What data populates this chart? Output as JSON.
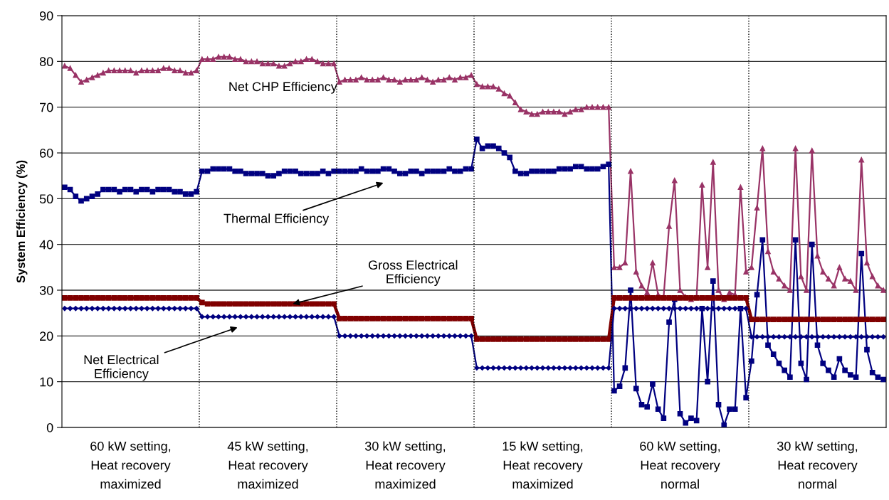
{
  "chart_data": {
    "type": "line",
    "ylabel": "System Efficiency (%)",
    "categories": [
      null,
      null,
      null,
      null,
      null,
      null,
      null,
      null,
      null,
      null,
      null,
      null,
      "60 kW setting,\nHeat recovery\nmaximized",
      null,
      null,
      null,
      null,
      null,
      null,
      null,
      null,
      null,
      null,
      null,
      null,
      null,
      null,
      null,
      null,
      null,
      null,
      null,
      null,
      null,
      null,
      null,
      null,
      "45 kW setting,\nHeat recovery\nmaximized",
      null,
      null,
      null,
      null,
      null,
      null,
      null,
      null,
      null,
      null,
      null,
      null,
      null,
      null,
      null,
      null,
      null,
      null,
      null,
      null,
      null,
      null,
      null,
      null,
      "30 kW setting,\nHeat recovery\nmaximized",
      null,
      null,
      null,
      null,
      null,
      null,
      null,
      null,
      null,
      null,
      null,
      null,
      null,
      null,
      null,
      null,
      null,
      null,
      null,
      null,
      null,
      null,
      null,
      null,
      "15 kW setting,\nHeat recovery\nmaximized",
      null,
      null,
      null,
      null,
      null,
      null,
      null,
      null,
      null,
      null,
      null,
      null,
      null,
      null,
      null,
      null,
      null,
      null,
      null,
      null,
      null,
      null,
      null,
      null,
      "60 kW setting,\nHeat recovery\nnormal",
      null,
      null,
      null,
      null,
      null,
      null,
      null,
      null,
      null,
      null,
      null,
      null,
      null,
      null,
      null,
      null,
      null,
      null,
      null,
      null,
      null,
      null,
      null,
      null,
      "30 kW setting,\nHeat recovery\nnormal",
      null,
      null,
      null,
      null,
      null,
      null,
      null,
      null,
      null,
      null,
      null,
      null
    ],
    "ylim": [
      0,
      90
    ],
    "yticks": [
      0,
      10,
      20,
      30,
      40,
      50,
      60,
      70,
      80,
      90
    ],
    "grid": "y",
    "line_style": "solid",
    "series": [
      {
        "color": "#993366",
        "marker": "triangle",
        "values": [
          79,
          78.5,
          77,
          75.5,
          76,
          76.5,
          77,
          77.5,
          78,
          78,
          78,
          78,
          78,
          77.5,
          78,
          78,
          78,
          78,
          78.5,
          78.5,
          78,
          78,
          77.5,
          77.5,
          78,
          80.5,
          80.5,
          80.5,
          81,
          81,
          81,
          80.5,
          80.5,
          80,
          80,
          80,
          79.5,
          79.5,
          79.5,
          79,
          79,
          79.5,
          80,
          80,
          80.5,
          80.5,
          80,
          79.5,
          79.5,
          79.5,
          75.5,
          76,
          76,
          76,
          76.5,
          76,
          76,
          76,
          76.5,
          76,
          76,
          75.5,
          76,
          76,
          76,
          76.5,
          76,
          75.5,
          76,
          76,
          76.5,
          76,
          76.5,
          76.5,
          77,
          75,
          74.5,
          74.5,
          74.5,
          74,
          73,
          72.5,
          71,
          69.5,
          69,
          68.5,
          68.5,
          69,
          69,
          69,
          69,
          68.5,
          69,
          69.5,
          69.5,
          70,
          70,
          70,
          70,
          70,
          35,
          35,
          36,
          56,
          34,
          31,
          29.5,
          36,
          29,
          28.5,
          44,
          54,
          30,
          28.5,
          28,
          28.5,
          53,
          35,
          58,
          30,
          28,
          29.5,
          29,
          52.5,
          34,
          35,
          48,
          61,
          38.5,
          34,
          32.5,
          31,
          30,
          61,
          33,
          30,
          60.5,
          37.5,
          34,
          32.5,
          31,
          35,
          32.5,
          32,
          30,
          58.5,
          36,
          33,
          31,
          30
        ]
      },
      {
        "color": "#000080",
        "marker": "square",
        "values": [
          52.5,
          52,
          50.5,
          49.5,
          50,
          50.5,
          51,
          52,
          52,
          52,
          51.5,
          52,
          52,
          51.5,
          52,
          52,
          51.5,
          52,
          52,
          52,
          51.5,
          51.5,
          51,
          51,
          51.5,
          56,
          56,
          56.5,
          56.5,
          56.5,
          56.5,
          56,
          56,
          55.5,
          55.5,
          55.5,
          55.5,
          55,
          55,
          55.5,
          56,
          56,
          56,
          55.5,
          55.5,
          55.5,
          55.5,
          56,
          55.5,
          56,
          56,
          56,
          56,
          56,
          56.5,
          56,
          56,
          56,
          56.5,
          56.5,
          56,
          55.5,
          55.5,
          56,
          56,
          55.5,
          56,
          56,
          56,
          56,
          56.5,
          56,
          56,
          56.5,
          56.5,
          63,
          61,
          61.5,
          61.5,
          61,
          60,
          59,
          56,
          55.5,
          55.5,
          56,
          56,
          56,
          56,
          56,
          56.5,
          56.5,
          56.5,
          57,
          57,
          56.5,
          56.5,
          56.5,
          57,
          57.5,
          8,
          9,
          13,
          30,
          8.5,
          5,
          4.5,
          9.5,
          4,
          2,
          23,
          28,
          3,
          1,
          2,
          1.5,
          26,
          10,
          32,
          5,
          0.5,
          4,
          4,
          26,
          6.5,
          14.5,
          29,
          41,
          18,
          16,
          14,
          12.5,
          11,
          41,
          14,
          10.5,
          40,
          18,
          14,
          12.5,
          11,
          15,
          12.5,
          11.5,
          11,
          38,
          17,
          12,
          11,
          10.5
        ]
      },
      {
        "color": "#800000",
        "marker": "square",
        "values": [
          28.3,
          28.3,
          28.3,
          28.3,
          28.3,
          28.3,
          28.3,
          28.3,
          28.3,
          28.3,
          28.3,
          28.3,
          28.3,
          28.3,
          28.3,
          28.3,
          28.3,
          28.3,
          28.3,
          28.3,
          28.3,
          28.3,
          28.3,
          28.3,
          28.3,
          27.3,
          27,
          27,
          27,
          27,
          27,
          27,
          27,
          27,
          27,
          27,
          27,
          27,
          27,
          27,
          27,
          27,
          27,
          27,
          27,
          27,
          27,
          27,
          27,
          27,
          23.8,
          23.8,
          23.8,
          23.8,
          23.8,
          23.8,
          23.8,
          23.8,
          23.8,
          23.8,
          23.8,
          23.8,
          23.8,
          23.8,
          23.8,
          23.8,
          23.8,
          23.8,
          23.8,
          23.8,
          23.8,
          23.8,
          23.8,
          23.8,
          23.8,
          19.3,
          19.3,
          19.3,
          19.3,
          19.3,
          19.3,
          19.3,
          19.3,
          19.3,
          19.3,
          19.3,
          19.3,
          19.3,
          19.3,
          19.3,
          19.3,
          19.3,
          19.3,
          19.3,
          19.3,
          19.3,
          19.3,
          19.3,
          19.3,
          19.3,
          28.3,
          28.3,
          28.3,
          28.3,
          28.3,
          28.3,
          28.3,
          28.3,
          28.3,
          28.3,
          28.3,
          28.3,
          28.3,
          28.3,
          28.3,
          28.3,
          28.3,
          28.3,
          28.3,
          28.3,
          28.3,
          28.3,
          28.3,
          28.3,
          28.3,
          23.6,
          23.6,
          23.6,
          23.6,
          23.6,
          23.6,
          23.6,
          23.6,
          23.6,
          23.6,
          23.6,
          23.6,
          23.6,
          23.6,
          23.6,
          23.6,
          23.6,
          23.6,
          23.6,
          23.6,
          23.6,
          23.6,
          23.6,
          23.6,
          23.6
        ]
      },
      {
        "color": "#000080",
        "marker": "diamond",
        "values": [
          26,
          26,
          26,
          26,
          26,
          26,
          26,
          26,
          26,
          26,
          26,
          26,
          26,
          26,
          26,
          26,
          26,
          26,
          26,
          26,
          26,
          26,
          26,
          26,
          26,
          24.2,
          24.2,
          24.2,
          24.2,
          24.2,
          24.2,
          24.2,
          24.2,
          24.2,
          24.2,
          24.2,
          24.2,
          24.2,
          24.2,
          24.2,
          24.2,
          24.2,
          24.2,
          24.2,
          24.2,
          24.2,
          24.2,
          24.2,
          24.2,
          24.2,
          20,
          20,
          20,
          20,
          20,
          20,
          20,
          20,
          20,
          20,
          20,
          20,
          20,
          20,
          20,
          20,
          20,
          20,
          20,
          20,
          20,
          20,
          20,
          20,
          20,
          13,
          13,
          13,
          13,
          13,
          13,
          13,
          13,
          13,
          13,
          13,
          13,
          13,
          13,
          13,
          13,
          13,
          13,
          13,
          13,
          13,
          13,
          13,
          13,
          13,
          26,
          26,
          26,
          26,
          26,
          26,
          26,
          26,
          26,
          26,
          26,
          26,
          26,
          26,
          26,
          26,
          26,
          26,
          26,
          26,
          26,
          26,
          26,
          26,
          26,
          19.8,
          19.8,
          19.8,
          19.8,
          19.8,
          19.8,
          19.8,
          19.8,
          19.8,
          19.8,
          19.8,
          19.8,
          19.8,
          19.8,
          19.8,
          19.8,
          19.8,
          19.8,
          19.8,
          19.8,
          19.8,
          19.8,
          19.8,
          19.8,
          19.8
        ]
      }
    ],
    "annotations": [
      "Net CHP Efficiency",
      "Thermal Efficiency",
      "Gross Electrical\nEfficiency",
      "Net Electrical\nEfficiency"
    ]
  }
}
